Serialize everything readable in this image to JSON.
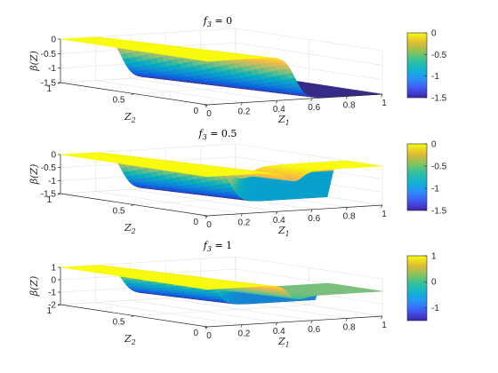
{
  "chart_data": [
    {
      "type": "surface",
      "title": "f3 = 0",
      "title_main": "f",
      "title_sub": "3",
      "title_rest": " = 0",
      "xlabel_main": "Z",
      "xlabel_sub": "1",
      "ylabel_main": "Z",
      "ylabel_sub": "2",
      "zlabel": "β(Z)",
      "xlim": [
        0,
        1
      ],
      "ylim": [
        0,
        1
      ],
      "zlim": [
        -1.5,
        0
      ],
      "x_ticks": [
        "0",
        "0.2",
        "0.4",
        "0.6",
        "0.8",
        "1"
      ],
      "y_ticks": [
        "0",
        "0.5",
        "1"
      ],
      "z_ticks": [
        "0",
        "-0.5",
        "-1",
        "-1.5"
      ],
      "x_tick_values": [
        0,
        0.2,
        0.4,
        0.6,
        0.8,
        1
      ],
      "y_tick_values": [
        0,
        0.5,
        1
      ],
      "z_tick_values": [
        0,
        -0.5,
        -1,
        -1.5
      ],
      "surface": {
        "low_value": -1.5,
        "high_value": 0,
        "front_value": -1.5,
        "step_x_at_y0": 0.5,
        "step_x_at_y1": 0.35,
        "step_width": 0.03,
        "front_plateau_y": 0.45
      },
      "colorbar": {
        "range": [
          -1.5,
          0
        ],
        "ticks": [
          "0",
          "-0.5",
          "-1",
          "-1.5"
        ],
        "tick_values": [
          0,
          -0.5,
          -1,
          -1.5
        ]
      },
      "grid": true
    },
    {
      "type": "surface",
      "title": "f3 = 0.5",
      "title_main": "f",
      "title_sub": "3",
      "title_rest": " = 0.5",
      "xlabel_main": "Z",
      "xlabel_sub": "1",
      "ylabel_main": "Z",
      "ylabel_sub": "2",
      "zlabel": "β(Z)",
      "xlim": [
        0,
        1
      ],
      "ylim": [
        0,
        1
      ],
      "zlim": [
        -1.5,
        0
      ],
      "x_ticks": [
        "0",
        "0.2",
        "0.4",
        "0.6",
        "0.8",
        "1"
      ],
      "y_ticks": [
        "0",
        "0.5",
        "1"
      ],
      "z_ticks": [
        "0",
        "-0.5",
        "-1",
        "-1.5"
      ],
      "x_tick_values": [
        0,
        0.2,
        0.4,
        0.6,
        0.8,
        1
      ],
      "y_tick_values": [
        0,
        0.5,
        1
      ],
      "z_tick_values": [
        0,
        -0.5,
        -1,
        -1.5
      ],
      "surface": {
        "low_value": -1.5,
        "high_value": 0,
        "front_value": 0,
        "step_x_at_y0": 0.5,
        "step_x_at_y1": 0.35,
        "step_width": 0.03,
        "front_plateau_y": 0.35
      },
      "colorbar": {
        "range": [
          -1.5,
          0
        ],
        "ticks": [
          "0",
          "-0.5",
          "-1",
          "-1.5"
        ],
        "tick_values": [
          0,
          -0.5,
          -1,
          -1.5
        ]
      },
      "grid": true
    },
    {
      "type": "surface",
      "title": "f3 = 1",
      "title_main": "f",
      "title_sub": "3",
      "title_rest": " = 1",
      "xlabel_main": "Z",
      "xlabel_sub": "1",
      "ylabel_main": "Z",
      "ylabel_sub": "2",
      "zlabel": "β(Z)",
      "xlim": [
        0,
        1
      ],
      "ylim": [
        0,
        1
      ],
      "zlim": [
        -2,
        1
      ],
      "x_ticks": [
        "0",
        "0.2",
        "0.4",
        "0.6",
        "0.8",
        "1"
      ],
      "y_ticks": [
        "0",
        "0.5",
        "1"
      ],
      "z_ticks": [
        "1",
        "0",
        "-1",
        "-2"
      ],
      "x_tick_values": [
        0,
        0.2,
        0.4,
        0.6,
        0.8,
        1
      ],
      "y_tick_values": [
        0,
        0.5,
        1
      ],
      "z_tick_values": [
        1,
        0,
        -1,
        -2
      ],
      "surface": {
        "low_value": -1.5,
        "high_value": 1,
        "front_value": 0,
        "step_x_at_y0": 0.5,
        "step_x_at_y1": 0.35,
        "step_width": 0.03,
        "front_plateau_y": 0.45
      },
      "colorbar": {
        "range": [
          -1.5,
          1
        ],
        "ticks": [
          "1",
          "0",
          "-1"
        ],
        "tick_values": [
          1,
          0,
          -1
        ]
      },
      "grid": true
    }
  ]
}
